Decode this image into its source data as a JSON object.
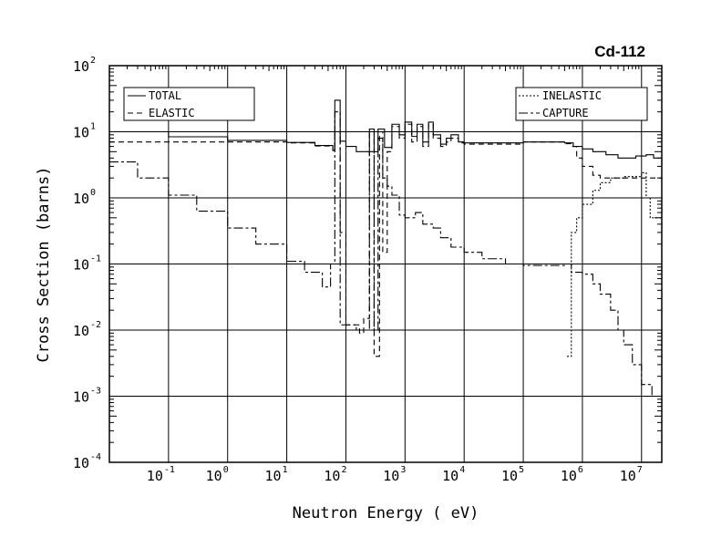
{
  "chart_data": {
    "type": "line",
    "title": "Cd-112",
    "xlabel": "Neutron Energy ( eV)",
    "ylabel": "Cross Section (barns)",
    "xscale": "log",
    "yscale": "log",
    "xlim": [
      0.01,
      22000000
    ],
    "ylim": [
      0.0001,
      100
    ],
    "grid": true,
    "x_ticks": [
      {
        "base": "10",
        "exp": "-1",
        "v": 0.1
      },
      {
        "base": "10",
        "exp": "0",
        "v": 1
      },
      {
        "base": "10",
        "exp": "1",
        "v": 10
      },
      {
        "base": "10",
        "exp": "2",
        "v": 100
      },
      {
        "base": "10",
        "exp": "3",
        "v": 1000
      },
      {
        "base": "10",
        "exp": "4",
        "v": 10000
      },
      {
        "base": "10",
        "exp": "5",
        "v": 100000
      },
      {
        "base": "10",
        "exp": "6",
        "v": 1000000
      },
      {
        "base": "10",
        "exp": "7",
        "v": 10000000
      }
    ],
    "y_ticks": [
      {
        "base": "10",
        "exp": "2",
        "v": 100
      },
      {
        "base": "10",
        "exp": "1",
        "v": 10
      },
      {
        "base": "10",
        "exp": "0",
        "v": 1
      },
      {
        "base": "10",
        "exp": "-1",
        "v": 0.1
      },
      {
        "base": "10",
        "exp": "-2",
        "v": 0.01
      },
      {
        "base": "10",
        "exp": "-3",
        "v": 0.001
      },
      {
        "base": "10",
        "exp": "-4",
        "v": 0.0001
      }
    ],
    "legend_left": [
      "TOTAL",
      "ELASTIC"
    ],
    "legend_right": [
      "INELASTIC",
      "CAPTURE"
    ],
    "series": [
      {
        "name": "TOTAL",
        "dash": "",
        "points": [
          [
            0.01,
            10
          ],
          [
            0.1,
            8.4
          ],
          [
            1,
            7.4
          ],
          [
            10,
            6.9
          ],
          [
            30,
            6.2
          ],
          [
            60,
            5.3
          ],
          [
            65,
            30
          ],
          [
            80,
            7.2
          ],
          [
            100,
            6
          ],
          [
            150,
            5
          ],
          [
            250,
            11
          ],
          [
            300,
            5
          ],
          [
            350,
            11
          ],
          [
            450,
            5.8
          ],
          [
            600,
            13
          ],
          [
            800,
            9
          ],
          [
            1000,
            14
          ],
          [
            1300,
            8.5
          ],
          [
            1600,
            13
          ],
          [
            2000,
            7
          ],
          [
            2500,
            14
          ],
          [
            3000,
            9
          ],
          [
            4000,
            6.5
          ],
          [
            5000,
            8
          ],
          [
            6000,
            9
          ],
          [
            8000,
            7
          ],
          [
            10000,
            6.8
          ],
          [
            100000,
            7
          ],
          [
            500000,
            6.8
          ],
          [
            700000,
            6
          ],
          [
            1000000,
            5.5
          ],
          [
            1500000,
            5
          ],
          [
            2500000,
            4.5
          ],
          [
            4000000,
            4
          ],
          [
            8000000,
            4.3
          ],
          [
            12000000,
            4.5
          ],
          [
            16000000,
            4
          ],
          [
            22000000,
            3.3
          ]
        ]
      },
      {
        "name": "ELASTIC",
        "dash": "6,4",
        "points": [
          [
            0.01,
            7
          ],
          [
            1,
            7
          ],
          [
            10,
            6.8
          ],
          [
            30,
            6.1
          ],
          [
            60,
            5.2
          ],
          [
            65,
            10
          ],
          [
            80,
            0.3
          ],
          [
            100,
            0.012
          ],
          [
            170,
            0.009
          ],
          [
            200,
            0.015
          ],
          [
            250,
            10
          ],
          [
            300,
            0.004
          ],
          [
            370,
            10
          ],
          [
            420,
            0.15
          ],
          [
            500,
            5
          ],
          [
            600,
            12
          ],
          [
            800,
            8
          ],
          [
            1000,
            13
          ],
          [
            1300,
            7
          ],
          [
            1600,
            12
          ],
          [
            2000,
            6
          ],
          [
            2500,
            13
          ],
          [
            3000,
            8
          ],
          [
            4000,
            6
          ],
          [
            5000,
            7
          ],
          [
            6000,
            8
          ],
          [
            8000,
            6.8
          ],
          [
            10000,
            6.5
          ],
          [
            100000,
            7
          ],
          [
            500000,
            6.6
          ],
          [
            650000,
            6
          ],
          [
            800000,
            4
          ],
          [
            1000000,
            3
          ],
          [
            1500000,
            2.2
          ],
          [
            2000000,
            2
          ],
          [
            10000000,
            2
          ],
          [
            22000000,
            1.5
          ]
        ]
      },
      {
        "name": "INELASTIC",
        "dash": "2,2",
        "points": [
          [
            550000,
            0.004
          ],
          [
            650000,
            0.3
          ],
          [
            800000,
            0.5
          ],
          [
            1000000,
            0.8
          ],
          [
            1500000,
            1.3
          ],
          [
            2000000,
            1.7
          ],
          [
            3000000,
            2
          ],
          [
            5000000,
            2.1
          ],
          [
            10000000,
            2.4
          ],
          [
            12000000,
            1
          ],
          [
            14000000,
            0.5
          ],
          [
            22000000,
            0.3
          ]
        ]
      },
      {
        "name": "CAPTURE",
        "dash": "10,3,3,3",
        "points": [
          [
            0.01,
            3.5
          ],
          [
            0.03,
            2
          ],
          [
            0.1,
            1.1
          ],
          [
            0.3,
            0.63
          ],
          [
            1,
            0.35
          ],
          [
            3,
            0.2
          ],
          [
            10,
            0.11
          ],
          [
            20,
            0.075
          ],
          [
            40,
            0.045
          ],
          [
            55,
            0.1
          ],
          [
            65,
            20
          ],
          [
            80,
            0.012
          ],
          [
            150,
            0.01
          ],
          [
            250,
            5
          ],
          [
            300,
            0.01
          ],
          [
            350,
            8
          ],
          [
            420,
            2
          ],
          [
            500,
            1.5
          ],
          [
            600,
            1.1
          ],
          [
            800,
            0.55
          ],
          [
            1000,
            0.5
          ],
          [
            1500,
            0.6
          ],
          [
            2000,
            0.4
          ],
          [
            3000,
            0.35
          ],
          [
            4000,
            0.25
          ],
          [
            6000,
            0.18
          ],
          [
            10000,
            0.15
          ],
          [
            20000,
            0.12
          ],
          [
            50000,
            0.1
          ],
          [
            100000,
            0.095
          ],
          [
            500000,
            0.1
          ],
          [
            650000,
            0.075
          ],
          [
            1000000,
            0.07
          ],
          [
            1500000,
            0.05
          ],
          [
            2000000,
            0.035
          ],
          [
            3000000,
            0.02
          ],
          [
            4000000,
            0.01
          ],
          [
            5000000,
            0.006
          ],
          [
            7000000,
            0.003
          ],
          [
            10000000,
            0.0015
          ],
          [
            15000000,
            0.001
          ]
        ]
      }
    ]
  }
}
